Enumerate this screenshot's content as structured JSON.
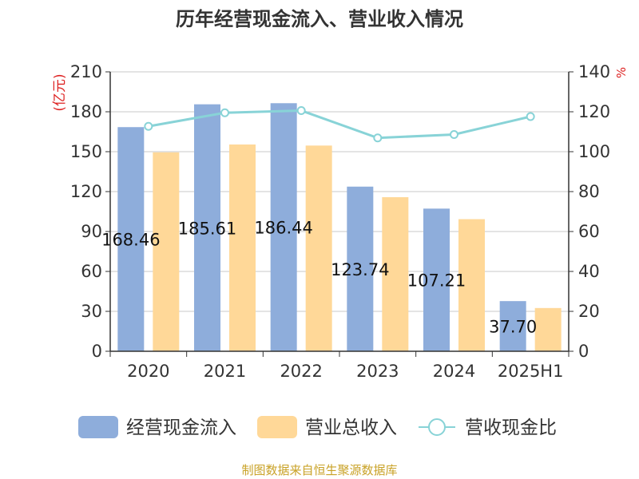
{
  "chart_data": {
    "type": "bar",
    "title": "历年经营现金流入、营业收入情况",
    "categories": [
      "2020",
      "2021",
      "2022",
      "2023",
      "2024",
      "2025H1"
    ],
    "series": [
      {
        "name": "经营现金流入",
        "type": "bar",
        "axis": "left",
        "color": "#8eaddb",
        "values": [
          168.46,
          185.61,
          186.44,
          123.74,
          107.21,
          37.7
        ],
        "labels": [
          "168.46",
          "185.61",
          "186.44",
          "123.74",
          "107.21",
          "37.70"
        ]
      },
      {
        "name": "营业总收入",
        "type": "bar",
        "axis": "left",
        "color": "#ffd898",
        "values": [
          149.5,
          155.4,
          154.6,
          115.8,
          99.3,
          32.5
        ]
      },
      {
        "name": "营收现金比",
        "type": "line",
        "axis": "right",
        "color": "#88d3d7",
        "values": [
          112.7,
          119.5,
          120.6,
          106.9,
          108.6,
          117.6
        ]
      }
    ],
    "y_left": {
      "label": "(亿元)",
      "ylim": [
        0,
        210
      ],
      "ticks": [
        0,
        30,
        60,
        90,
        120,
        150,
        180,
        210
      ]
    },
    "y_right": {
      "label": "%",
      "ylim": [
        0,
        140
      ],
      "ticks": [
        0,
        20,
        40,
        60,
        80,
        100,
        120,
        140
      ]
    },
    "grid": true,
    "legend_position": "bottom",
    "label_color": "#dd2222",
    "footer": "制图数据来自恒生聚源数据库"
  }
}
